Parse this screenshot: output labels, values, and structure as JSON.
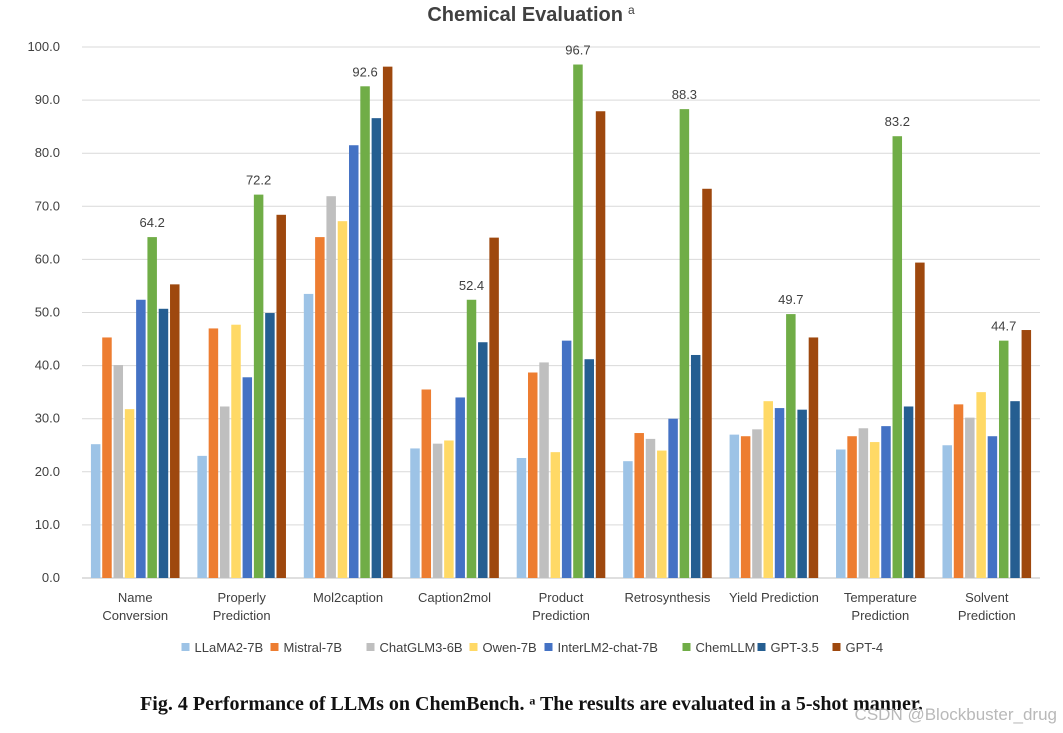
{
  "chart_data": {
    "type": "bar",
    "title": "Chemical Evaluation",
    "title_superscript": "a",
    "xlabel": "",
    "ylabel": "",
    "ylim": [
      0,
      100
    ],
    "ytick_step": 10,
    "grid": true,
    "legend_position": "bottom",
    "categories": [
      [
        "Name",
        "Conversion"
      ],
      [
        "Properly",
        "Prediction"
      ],
      [
        "Mol2caption"
      ],
      [
        "Caption2mol"
      ],
      [
        "Product",
        "Prediction"
      ],
      [
        "Retrosynthesis"
      ],
      [
        "Yield Prediction"
      ],
      [
        "Temperature",
        "Prediction"
      ],
      [
        "Solvent",
        "Prediction"
      ]
    ],
    "series": [
      {
        "name": "LLaMA2-7B",
        "color": "#9dc3e6",
        "values": [
          25.2,
          23.0,
          53.5,
          24.4,
          22.6,
          22.0,
          27.0,
          24.2,
          25.0
        ]
      },
      {
        "name": "Mistral-7B",
        "color": "#ed7d31",
        "values": [
          45.3,
          47.0,
          64.2,
          35.5,
          38.7,
          27.3,
          26.7,
          26.7,
          32.7
        ]
      },
      {
        "name": "ChatGLM3-6B",
        "color": "#bfbfbf",
        "values": [
          40.1,
          32.3,
          71.9,
          25.3,
          40.6,
          26.2,
          28.0,
          28.2,
          30.2
        ]
      },
      {
        "name": "Owen-7B",
        "color": "#ffd966",
        "values": [
          31.8,
          47.7,
          67.2,
          25.9,
          23.7,
          24.0,
          33.3,
          25.6,
          35.0
        ]
      },
      {
        "name": "InterLM2-chat-7B",
        "color": "#4472c4",
        "values": [
          52.4,
          37.8,
          81.5,
          34.0,
          44.7,
          30.0,
          32.0,
          28.6,
          26.7
        ]
      },
      {
        "name": "ChemLLM",
        "color": "#70ad47",
        "values": [
          64.2,
          72.2,
          92.6,
          52.4,
          96.7,
          88.3,
          49.7,
          83.2,
          44.7
        ]
      },
      {
        "name": "GPT-3.5",
        "color": "#255e91",
        "values": [
          50.7,
          49.9,
          86.6,
          44.4,
          41.2,
          42.0,
          31.7,
          32.3,
          33.3
        ]
      },
      {
        "name": "GPT-4",
        "color": "#9e480e",
        "values": [
          55.3,
          68.4,
          96.3,
          64.1,
          87.9,
          73.3,
          45.3,
          59.4,
          46.7
        ]
      }
    ],
    "annotations": {
      "series": "ChemLLM",
      "labels": [
        "64.2",
        "72.2",
        "92.6",
        "52.4",
        "96.7",
        "88.3",
        "49.7",
        "83.2",
        "44.7"
      ]
    }
  },
  "caption": "Fig. 4 Performance of LLMs on ChemBench. ᵃ The results are evaluated in a 5-shot manner.",
  "watermark": "CSDN @Blockbuster_drug"
}
